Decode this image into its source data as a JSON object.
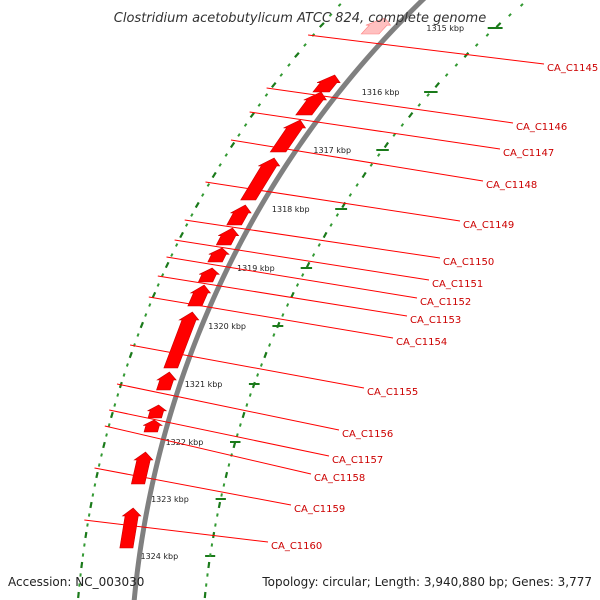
{
  "title": "Clostridium acetobutylicum ATCC 824, complete genome",
  "accession": "Accession: NC_003030",
  "summary": "Topology: circular; Length: 3,940,880 bp; Genes: 3,777",
  "colors": {
    "backbone": "#808080",
    "gene": "#ff0000",
    "gene_faded": "#ffc0c0",
    "gene_label": "#cc0000",
    "dots_minor": "#339933",
    "dots_major": "#1a7a1a"
  },
  "scale_labels": [
    "1315 kbp",
    "1316 kbp",
    "1317 kbp",
    "1318 kbp",
    "1319 kbp",
    "1320 kbp",
    "1321 kbp",
    "1322 kbp",
    "1323 kbp",
    "1324 kbp"
  ],
  "genes": [
    {
      "label": "CA_C1145"
    },
    {
      "label": "CA_C1146"
    },
    {
      "label": "CA_C1147"
    },
    {
      "label": "CA_C1148"
    },
    {
      "label": "CA_C1149"
    },
    {
      "label": "CA_C1150"
    },
    {
      "label": "CA_C1151"
    },
    {
      "label": "CA_C1152"
    },
    {
      "label": "CA_C1153"
    },
    {
      "label": "CA_C1154"
    },
    {
      "label": "CA_C1155"
    },
    {
      "label": "CA_C1156"
    },
    {
      "label": "CA_C1157"
    },
    {
      "label": "CA_C1158"
    },
    {
      "label": "CA_C1159"
    },
    {
      "label": "CA_C1160"
    }
  ]
}
